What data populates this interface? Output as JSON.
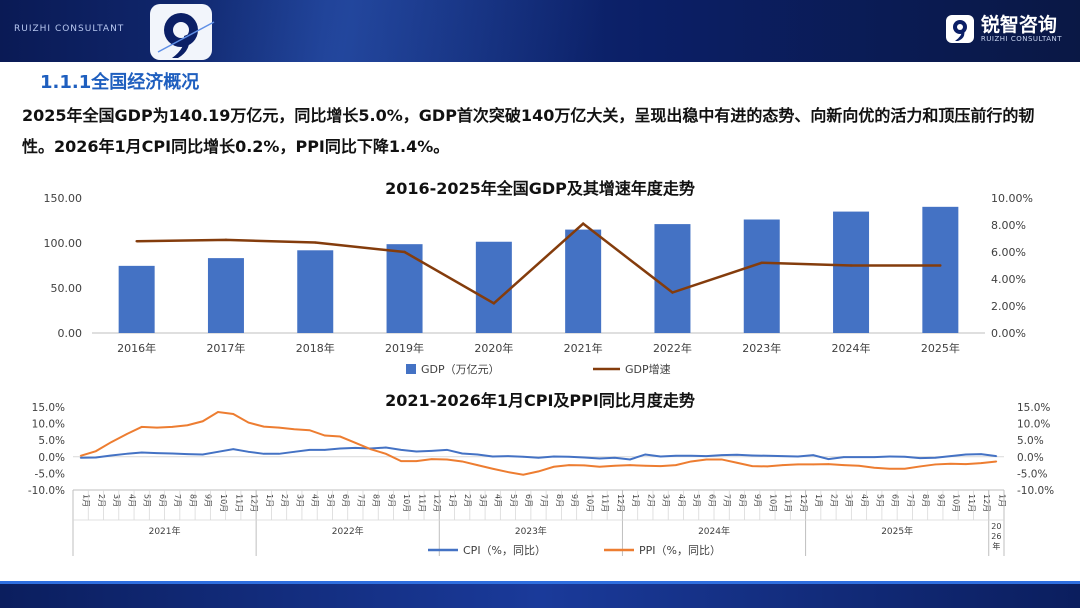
{
  "header": {
    "brand_left": "RUIZHI CONSULTANT",
    "logo_cn": "锐智咨询",
    "logo_en": "RUIZHI CONSULTANT"
  },
  "section_title": "1.1.1全国经济概况",
  "summary": "2025年全国GDP为140.19万亿元，同比增长5.0%，GDP首次突破140万亿大关，呈现出稳中有进的态势、向新向优的活力和顶压前行的韧性。2026年1月CPI同比增长0.2%，PPI同比下降1.4%。",
  "colors": {
    "gdp_bar": "#4472c4",
    "gdp_growth": "#843c0c",
    "cpi": "#4472c4",
    "ppi": "#ed7d31",
    "title": "#1f5fbf"
  },
  "chart_data": [
    {
      "type": "bar",
      "title": "2016-2025年全国GDP及其增速年度走势",
      "categories": [
        "2016年",
        "2017年",
        "2018年",
        "2019年",
        "2020年",
        "2021年",
        "2022年",
        "2023年",
        "2024年",
        "2025年"
      ],
      "series": [
        {
          "name": "GDP（万亿元）",
          "kind": "bar",
          "axis": "left",
          "values": [
            74.6,
            83.2,
            91.9,
            98.7,
            101.4,
            114.9,
            121.0,
            126.1,
            134.9,
            140.19
          ]
        },
        {
          "name": "GDP增速",
          "kind": "line",
          "axis": "right",
          "values": [
            6.8,
            6.9,
            6.7,
            6.0,
            2.2,
            8.1,
            3.0,
            5.2,
            5.0,
            5.0
          ]
        }
      ],
      "left_axis": {
        "ticks": [
          "0.00",
          "50.00",
          "100.00",
          "150.00"
        ],
        "ylim": [
          0,
          150
        ]
      },
      "right_axis": {
        "ticks": [
          "0.00%",
          "2.00%",
          "4.00%",
          "6.00%",
          "8.00%",
          "10.00%"
        ],
        "ylim": [
          0,
          10
        ]
      },
      "legend": "bottom"
    },
    {
      "type": "line",
      "title": "2021-2026年1月CPI及PPI同比月度走势",
      "month_labels": [
        "1月",
        "2月",
        "3月",
        "4月",
        "5月",
        "6月",
        "7月",
        "8月",
        "9月",
        "10月",
        "11月",
        "12月"
      ],
      "year_labels": [
        "2021年",
        "2022年",
        "2023年",
        "2024年",
        "2025年"
      ],
      "last_label_month": "1月",
      "last_label_year": "2026年",
      "series": [
        {
          "name": "CPI（%，同比）",
          "axis": "left",
          "values": [
            -0.3,
            -0.2,
            0.4,
            0.9,
            1.3,
            1.1,
            1.0,
            0.8,
            0.7,
            1.5,
            2.3,
            1.5,
            0.9,
            0.9,
            1.5,
            2.1,
            2.1,
            2.5,
            2.7,
            2.5,
            2.8,
            2.1,
            1.6,
            1.8,
            2.1,
            1.0,
            0.7,
            0.1,
            0.2,
            0.0,
            -0.3,
            0.1,
            0.0,
            -0.2,
            -0.5,
            -0.3,
            -0.8,
            0.7,
            0.1,
            0.3,
            0.3,
            0.2,
            0.5,
            0.6,
            0.4,
            0.3,
            0.2,
            0.1,
            0.5,
            -0.7,
            -0.1,
            -0.1,
            -0.1,
            0.1,
            0.0,
            -0.4,
            -0.3,
            0.2,
            0.7,
            0.8,
            0.2
          ]
        },
        {
          "name": "PPI（%，同比）",
          "axis": "right",
          "values": [
            0.3,
            1.7,
            4.4,
            6.8,
            9.0,
            8.8,
            9.0,
            9.5,
            10.7,
            13.5,
            12.9,
            10.3,
            9.1,
            8.8,
            8.3,
            8.0,
            6.4,
            6.1,
            4.2,
            2.3,
            0.9,
            -1.3,
            -1.3,
            -0.7,
            -0.8,
            -1.4,
            -2.5,
            -3.6,
            -4.6,
            -5.4,
            -4.4,
            -3.0,
            -2.5,
            -2.6,
            -3.0,
            -2.7,
            -2.5,
            -2.7,
            -2.8,
            -2.5,
            -1.4,
            -0.8,
            -0.8,
            -1.8,
            -2.8,
            -2.9,
            -2.5,
            -2.3,
            -2.3,
            -2.2,
            -2.5,
            -2.7,
            -3.3,
            -3.6,
            -3.6,
            -2.9,
            -2.3,
            -2.1,
            -2.2,
            -1.9,
            -1.4
          ]
        }
      ],
      "left_axis": {
        "ticks": [
          "-10.0%",
          "-5.0%",
          "0.0%",
          "5.0%",
          "10.0%",
          "15.0%"
        ],
        "ylim": [
          -10,
          15
        ]
      },
      "right_axis": {
        "ticks": [
          "-10.0%",
          "-5.0%",
          "0.0%",
          "5.0%",
          "10.0%",
          "15.0%"
        ],
        "ylim": [
          -10,
          15
        ]
      },
      "legend": "bottom"
    }
  ]
}
